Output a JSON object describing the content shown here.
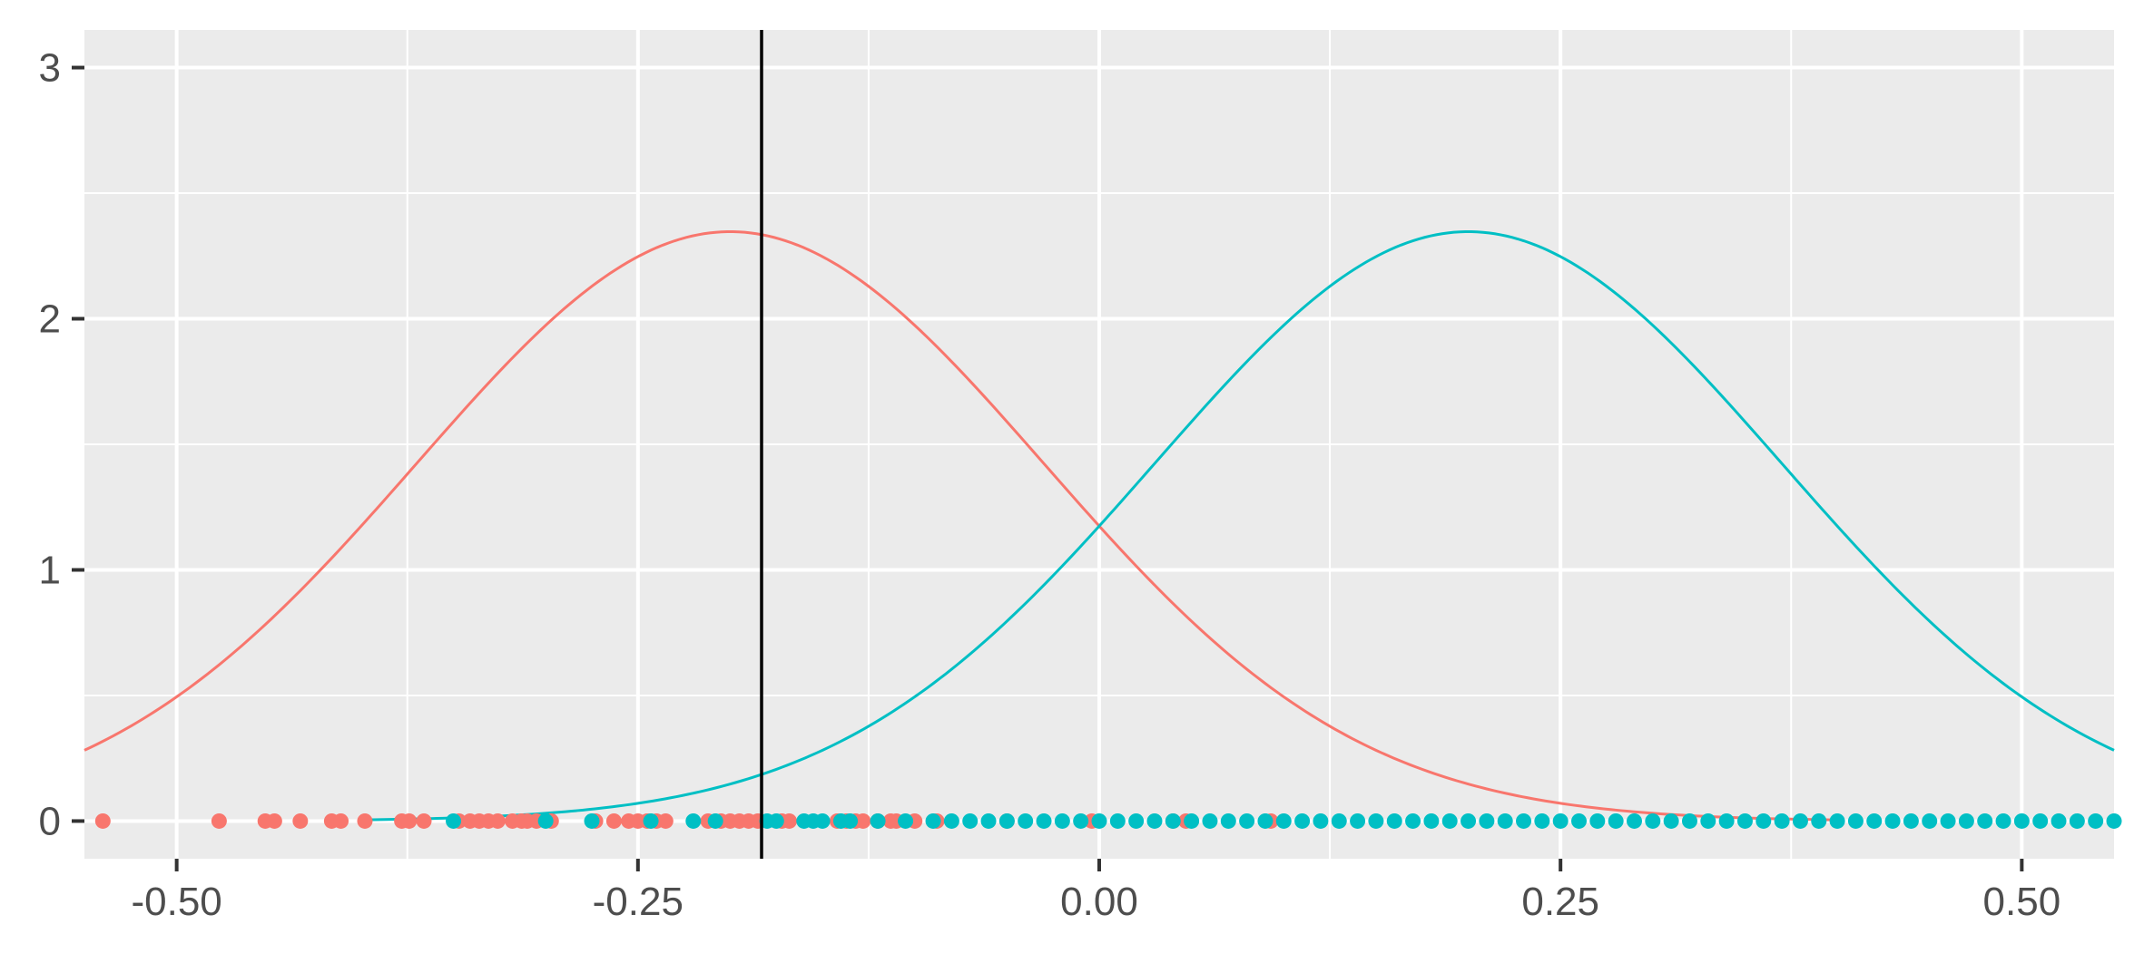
{
  "chart_data": {
    "type": "line",
    "title": "",
    "xlabel": "",
    "ylabel": "",
    "xlim": [
      -0.55,
      0.55
    ],
    "ylim": [
      -0.15,
      3.15
    ],
    "x_ticks": [
      -0.5,
      -0.25,
      0.0,
      0.25,
      0.5
    ],
    "x_tick_labels": [
      "-0.50",
      "-0.25",
      "0.00",
      "0.25",
      "0.50"
    ],
    "y_ticks": [
      0,
      1,
      2,
      3
    ],
    "y_tick_labels": [
      "0",
      "1",
      "2",
      "3"
    ],
    "vertical_line": {
      "x": -0.183,
      "color": "#000000"
    },
    "grid": true,
    "legend": "none",
    "series": [
      {
        "color": "#F8766D",
        "curve": {
          "distribution": "normal",
          "mean": -0.2,
          "sd": 0.17,
          "x_range": [
            -0.55,
            0.4
          ]
        },
        "points": [
          -0.54,
          -0.477,
          -0.452,
          -0.447,
          -0.433,
          -0.416,
          -0.411,
          -0.398,
          -0.378,
          -0.374,
          -0.366,
          -0.347,
          -0.341,
          -0.336,
          -0.331,
          -0.326,
          -0.318,
          -0.313,
          -0.31,
          -0.305,
          -0.297,
          -0.273,
          -0.263,
          -0.255,
          -0.25,
          -0.245,
          -0.24,
          -0.235,
          -0.212,
          -0.205,
          -0.2,
          -0.195,
          -0.19,
          -0.185,
          -0.172,
          -0.168,
          -0.142,
          -0.137,
          -0.132,
          -0.128,
          -0.12,
          -0.113,
          -0.11,
          -0.1,
          -0.088,
          -0.05,
          -0.004,
          0.04,
          0.047,
          0.093
        ]
      },
      {
        "color": "#00BFC4",
        "curve": {
          "distribution": "normal",
          "mean": 0.2,
          "sd": 0.17,
          "x_range": [
            -0.4,
            0.55
          ]
        },
        "points": [
          -0.35,
          -0.3,
          -0.275,
          -0.243,
          -0.22,
          -0.208,
          -0.18,
          -0.175,
          -0.16,
          -0.155,
          -0.15,
          -0.14,
          -0.135,
          -0.12,
          -0.105,
          -0.09,
          -0.08,
          -0.07,
          -0.06,
          -0.05,
          -0.04,
          -0.03,
          -0.02,
          -0.01,
          0.0,
          0.01,
          0.02,
          0.03,
          0.04,
          0.05,
          0.06,
          0.07,
          0.08,
          0.09,
          0.1,
          0.11,
          0.12,
          0.13,
          0.14,
          0.15,
          0.16,
          0.17,
          0.18,
          0.19,
          0.2,
          0.21,
          0.22,
          0.23,
          0.24,
          0.25,
          0.26,
          0.27,
          0.28,
          0.29,
          0.3,
          0.31,
          0.32,
          0.33,
          0.34,
          0.35,
          0.36,
          0.37,
          0.38,
          0.39,
          0.4,
          0.41,
          0.42,
          0.43,
          0.44,
          0.45,
          0.46,
          0.47,
          0.48,
          0.49,
          0.5,
          0.51,
          0.52,
          0.53,
          0.54,
          0.55
        ]
      }
    ]
  }
}
